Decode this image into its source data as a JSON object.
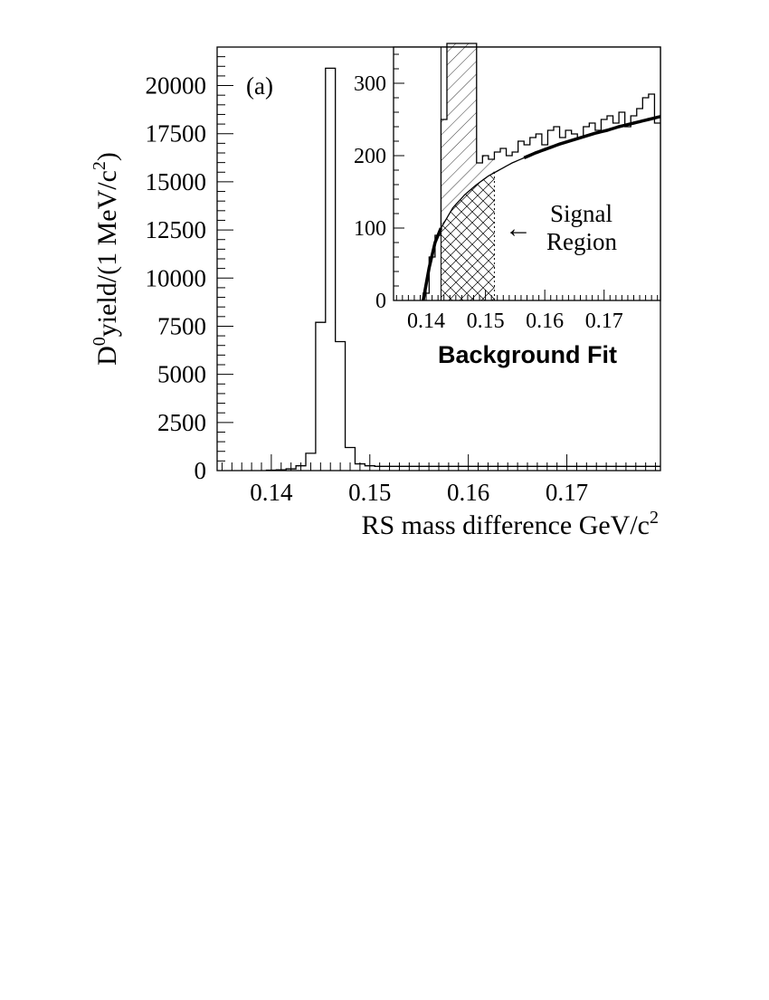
{
  "chart_data": [
    {
      "type": "line",
      "panel_label": "(a)",
      "xlabel": "RS mass difference   GeV/c²",
      "ylabel_main": "D",
      "ylabel_sup": "0",
      "ylabel_rest": "yield/(1 MeV/c",
      "ylabel_sup2": "2",
      "ylabel_end": ")",
      "xlim": [
        0.1345,
        0.1795
      ],
      "ylim": [
        0,
        22000
      ],
      "x_ticks": [
        "0.14",
        "0.15",
        "0.16",
        "0.17"
      ],
      "y_ticks": [
        "0",
        "2500",
        "5000",
        "7500",
        "10000",
        "12500",
        "15000",
        "17500",
        "20000"
      ],
      "series": [
        {
          "bin_edges": [
            0.1395,
            0.1405,
            0.1415,
            0.1425,
            0.1435,
            0.1445,
            0.1455,
            0.1465,
            0.1475,
            0.1485,
            0.1495,
            0.1505,
            0.1795
          ],
          "values": [
            20,
            40,
            90,
            250,
            900,
            7700,
            20900,
            6700,
            1200,
            350,
            250,
            220
          ]
        }
      ]
    },
    {
      "type": "line",
      "title": "Background Fit",
      "xlim": [
        0.1345,
        0.1795
      ],
      "ylim": [
        0,
        350
      ],
      "x_ticks": [
        "0.14",
        "0.15",
        "0.16",
        "0.17"
      ],
      "y_ticks": [
        "0",
        "100",
        "200",
        "300"
      ],
      "annotation": {
        "arrow": "←",
        "line1": "Signal",
        "line2": "Region"
      },
      "signal_region": [
        0.1425,
        0.1515
      ],
      "series": [
        {
          "bin_edges": [
            0.1395,
            0.1405,
            0.1415,
            0.1425,
            0.1435,
            0.1445,
            0.1455,
            0.1465,
            0.1475,
            0.1485,
            0.1495,
            0.1505,
            0.1515,
            0.1525,
            0.1535,
            0.1545,
            0.1555,
            0.1565,
            0.1575,
            0.1585,
            0.1595,
            0.1605,
            0.1615,
            0.1625,
            0.1635,
            0.1645,
            0.1655,
            0.1665,
            0.1675,
            0.1685,
            0.1695,
            0.1705,
            0.1715,
            0.1725,
            0.1735,
            0.1745,
            0.1755,
            0.1765,
            0.1775,
            0.1785,
            0.1795
          ],
          "values": [
            10,
            60,
            90,
            250,
            900,
            7700,
            20900,
            6700,
            1200,
            190,
            200,
            195,
            205,
            210,
            200,
            205,
            220,
            215,
            225,
            230,
            215,
            235,
            240,
            225,
            235,
            230,
            225,
            240,
            245,
            235,
            250,
            255,
            245,
            260,
            240,
            255,
            265,
            280,
            285,
            245
          ]
        },
        {
          "fit_curve": {
            "x": [
              0.1395,
              0.1405,
              0.1415,
              0.1425,
              0.1445,
              0.1465,
              0.1485,
              0.1505,
              0.1525,
              0.1545,
              0.1565,
              0.1585,
              0.1605,
              0.1625,
              0.1645,
              0.1665,
              0.1685,
              0.1705,
              0.1725,
              0.1745,
              0.1765,
              0.1795
            ],
            "values": [
              0,
              45,
              80,
              100,
              128,
              146,
              160,
              172,
              181,
              190,
              197,
              204,
              210,
              216,
              221,
              226,
              231,
              235,
              240,
              244,
              248,
              254
            ]
          }
        }
      ]
    }
  ]
}
